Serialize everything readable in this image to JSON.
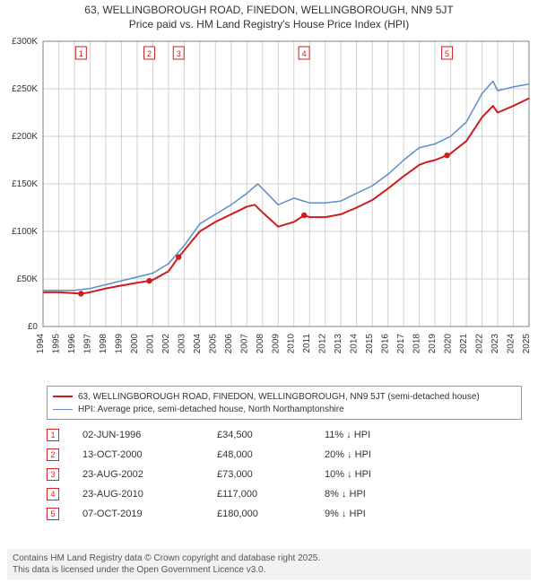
{
  "title_main": "63, WELLINGBOROUGH ROAD, FINEDON, WELLINGBOROUGH, NN9 5JT",
  "title_sub": "Price paid vs. HM Land Registry's House Price Index (HPI)",
  "chart": {
    "type": "line",
    "background_color": "#ffffff",
    "plot_border_color": "#808080",
    "grid_color": "#d0d0d0",
    "grid_on": true,
    "x": {
      "min": 1994,
      "max": 2025,
      "tick_step": 1,
      "label_fontsize": 10,
      "label_rotation": -90
    },
    "y": {
      "min": 0,
      "max": 300000,
      "tick_step": 50000,
      "label_fontsize": 10,
      "tick_labels": [
        "£0",
        "£50K",
        "£100K",
        "£150K",
        "£200K",
        "£250K",
        "£300K"
      ]
    },
    "series": [
      {
        "name": "property_price",
        "color": "#d01c1c",
        "line_width": 2,
        "points": [
          [
            1994.0,
            36000
          ],
          [
            1995.0,
            36000
          ],
          [
            1996.0,
            35000
          ],
          [
            1996.42,
            34500
          ],
          [
            1997.0,
            36000
          ],
          [
            1998.0,
            40000
          ],
          [
            1999.0,
            43000
          ],
          [
            2000.0,
            46000
          ],
          [
            2000.78,
            48000
          ],
          [
            2001.0,
            49000
          ],
          [
            2002.0,
            58000
          ],
          [
            2002.65,
            73000
          ],
          [
            2003.0,
            80000
          ],
          [
            2004.0,
            100000
          ],
          [
            2005.0,
            110000
          ],
          [
            2006.0,
            118000
          ],
          [
            2007.0,
            126000
          ],
          [
            2007.5,
            128000
          ],
          [
            2008.0,
            120000
          ],
          [
            2009.0,
            105000
          ],
          [
            2010.0,
            110000
          ],
          [
            2010.65,
            117000
          ],
          [
            2011.0,
            115000
          ],
          [
            2012.0,
            115000
          ],
          [
            2013.0,
            118000
          ],
          [
            2014.0,
            125000
          ],
          [
            2015.0,
            133000
          ],
          [
            2016.0,
            145000
          ],
          [
            2017.0,
            158000
          ],
          [
            2018.0,
            170000
          ],
          [
            2018.5,
            173000
          ],
          [
            2019.0,
            175000
          ],
          [
            2019.77,
            180000
          ],
          [
            2020.0,
            182000
          ],
          [
            2021.0,
            195000
          ],
          [
            2022.0,
            220000
          ],
          [
            2022.7,
            232000
          ],
          [
            2023.0,
            225000
          ],
          [
            2024.0,
            232000
          ],
          [
            2025.0,
            240000
          ]
        ],
        "sale_markers": [
          {
            "x": 1996.42,
            "y": 34500
          },
          {
            "x": 2000.78,
            "y": 48000
          },
          {
            "x": 2002.65,
            "y": 73000
          },
          {
            "x": 2010.65,
            "y": 117000
          },
          {
            "x": 2019.77,
            "y": 180000
          }
        ]
      },
      {
        "name": "hpi",
        "color": "#5b8fc7",
        "line_width": 1.5,
        "points": [
          [
            1994.0,
            38000
          ],
          [
            1995.0,
            38000
          ],
          [
            1996.0,
            38000
          ],
          [
            1997.0,
            40000
          ],
          [
            1998.0,
            44000
          ],
          [
            1999.0,
            48000
          ],
          [
            2000.0,
            52000
          ],
          [
            2001.0,
            56000
          ],
          [
            2002.0,
            66000
          ],
          [
            2003.0,
            85000
          ],
          [
            2004.0,
            108000
          ],
          [
            2005.0,
            118000
          ],
          [
            2006.0,
            128000
          ],
          [
            2007.0,
            140000
          ],
          [
            2007.7,
            150000
          ],
          [
            2008.0,
            145000
          ],
          [
            2009.0,
            128000
          ],
          [
            2010.0,
            135000
          ],
          [
            2011.0,
            130000
          ],
          [
            2012.0,
            130000
          ],
          [
            2013.0,
            132000
          ],
          [
            2014.0,
            140000
          ],
          [
            2015.0,
            148000
          ],
          [
            2016.0,
            160000
          ],
          [
            2017.0,
            175000
          ],
          [
            2018.0,
            188000
          ],
          [
            2019.0,
            192000
          ],
          [
            2020.0,
            200000
          ],
          [
            2021.0,
            215000
          ],
          [
            2022.0,
            245000
          ],
          [
            2022.7,
            258000
          ],
          [
            2023.0,
            248000
          ],
          [
            2024.0,
            252000
          ],
          [
            2025.0,
            255000
          ]
        ]
      }
    ],
    "top_markers": [
      {
        "num": "1",
        "x": 1996.42
      },
      {
        "num": "2",
        "x": 2000.78
      },
      {
        "num": "3",
        "x": 2002.65
      },
      {
        "num": "4",
        "x": 2010.65
      },
      {
        "num": "5",
        "x": 2019.77
      }
    ],
    "marker_box": {
      "border_color": "#d01c1c",
      "text_color": "#d01c1c",
      "fontsize": 9
    }
  },
  "legend": {
    "border_color": "#999999",
    "fontsize": 10,
    "items": [
      {
        "color": "#d01c1c",
        "width": 2,
        "label": "63, WELLINGBOROUGH ROAD, FINEDON, WELLINGBOROUGH, NN9 5JT (semi-detached house)"
      },
      {
        "color": "#5b8fc7",
        "width": 1.5,
        "label": "HPI: Average price, semi-detached house, North Northamptonshire"
      }
    ]
  },
  "sales_table": {
    "fontsize": 11,
    "rows": [
      {
        "num": "1",
        "date": "02-JUN-1996",
        "price": "£34,500",
        "delta": "11% ↓ HPI"
      },
      {
        "num": "2",
        "date": "13-OCT-2000",
        "price": "£48,000",
        "delta": "20% ↓ HPI"
      },
      {
        "num": "3",
        "date": "23-AUG-2002",
        "price": "£73,000",
        "delta": "10% ↓ HPI"
      },
      {
        "num": "4",
        "date": "23-AUG-2010",
        "price": "£117,000",
        "delta": "8% ↓ HPI"
      },
      {
        "num": "5",
        "date": "07-OCT-2019",
        "price": "£180,000",
        "delta": "9% ↓ HPI"
      }
    ]
  },
  "footer": {
    "line1": "Contains HM Land Registry data © Crown copyright and database right 2025.",
    "line2": "This data is licensed under the Open Government Licence v3.0.",
    "background_color": "#f2f2f2",
    "text_color": "#555555",
    "fontsize": 10
  }
}
